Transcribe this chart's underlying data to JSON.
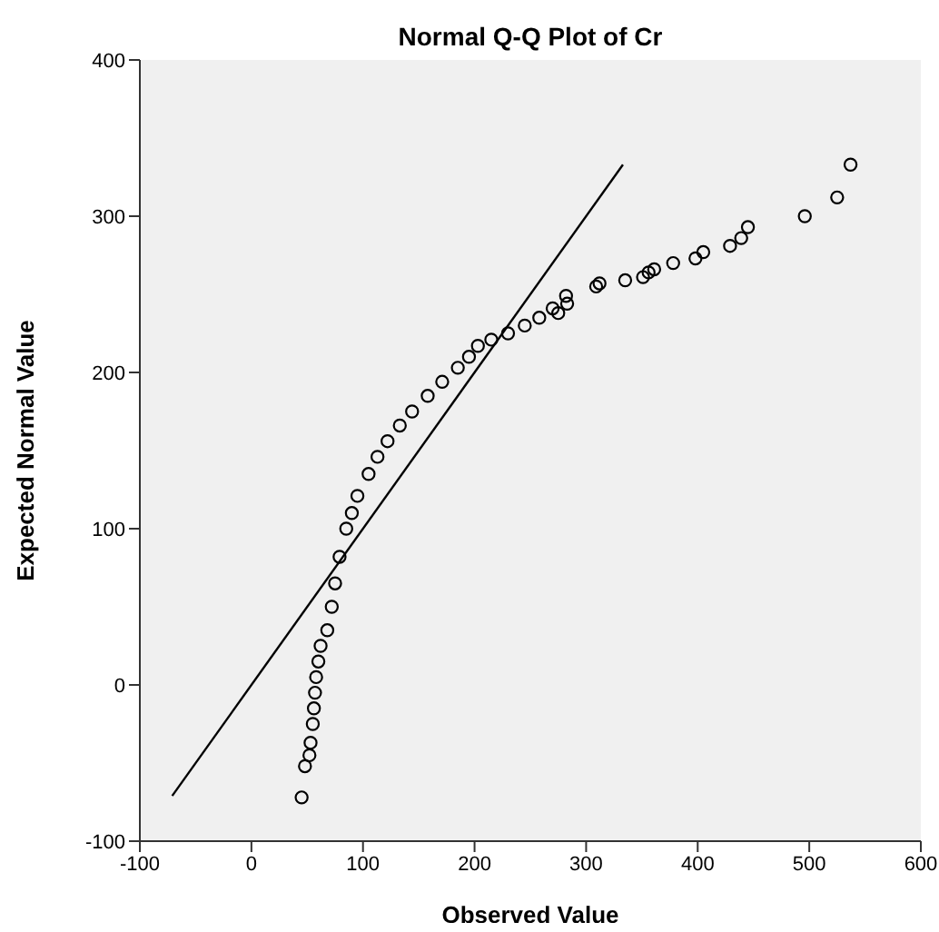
{
  "chart_data": {
    "type": "scatter",
    "title": "Normal Q-Q Plot of Cr",
    "xlabel": "Observed Value",
    "ylabel": "Expected Normal Value",
    "xlim": [
      -100,
      600
    ],
    "xticks": [
      -100,
      0,
      100,
      200,
      300,
      400,
      500,
      600
    ],
    "ylim": [
      -100,
      400
    ],
    "yticks": [
      -100,
      0,
      100,
      200,
      300,
      400
    ],
    "grid": false,
    "legend": false,
    "marker": "circle",
    "series": [
      {
        "color": "#000000",
        "x": [
          45,
          48,
          52,
          53,
          55,
          56,
          57,
          58,
          60,
          62,
          68,
          72,
          75,
          79,
          85,
          90,
          95,
          105,
          113,
          122,
          133,
          144,
          158,
          171,
          185,
          195,
          203,
          215,
          230,
          245,
          258,
          270,
          275,
          283,
          282,
          309,
          312,
          335,
          351,
          356,
          361,
          378,
          398,
          405,
          429,
          439,
          445,
          496,
          525,
          537
        ],
        "values": [
          -72,
          -52,
          -45,
          -37,
          -25,
          -15,
          -5,
          5,
          15,
          25,
          35,
          50,
          65,
          82,
          100,
          110,
          121,
          135,
          146,
          156,
          166,
          175,
          185,
          194,
          203,
          210,
          217,
          221,
          225,
          230,
          235,
          241,
          238,
          244,
          249,
          255,
          257,
          259,
          261,
          264,
          266,
          270,
          273,
          277,
          281,
          286,
          293,
          300,
          312,
          333
        ]
      },
      {
        "type": "line",
        "color": "#000000",
        "marker": "none",
        "x": [
          -71,
          333
        ],
        "values": [
          -71,
          333
        ]
      }
    ]
  }
}
